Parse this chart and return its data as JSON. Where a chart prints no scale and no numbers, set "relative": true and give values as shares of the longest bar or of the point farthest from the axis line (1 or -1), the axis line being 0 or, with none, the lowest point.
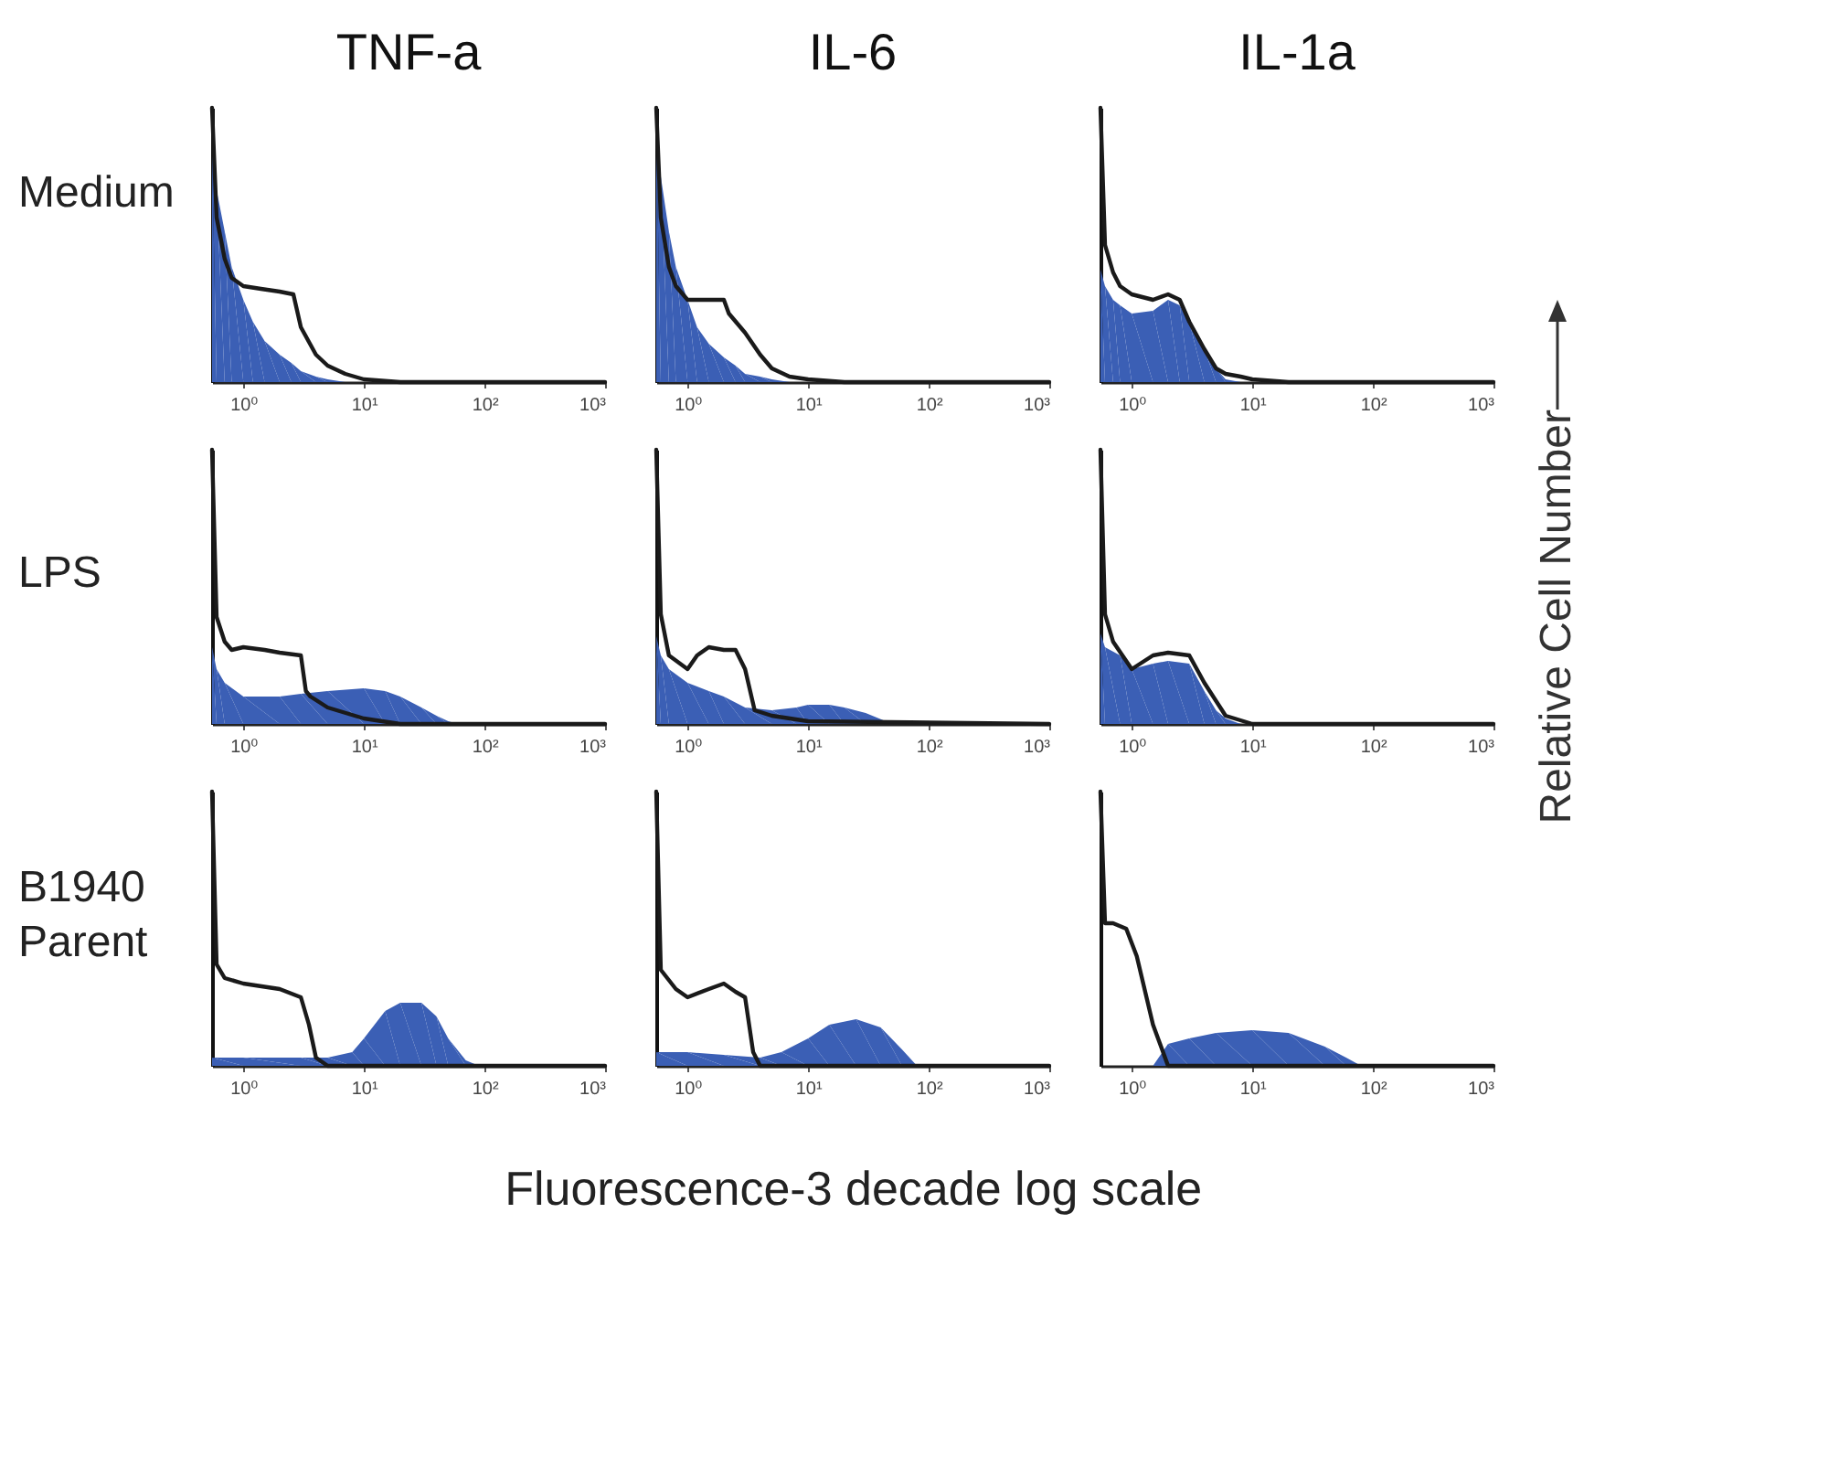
{
  "chart_data": [
    {
      "type": "area",
      "title": "TNF-a",
      "ylabel": "Medium",
      "relative": true,
      "log": "x",
      "xlim": [
        0.55,
        1000
      ],
      "xticks": [
        {
          "value": 1,
          "label": "10⁰"
        },
        {
          "value": 10,
          "label": "10¹"
        },
        {
          "value": 100,
          "label": "10²"
        },
        {
          "value": 1000,
          "label": "10³"
        }
      ],
      "series": [
        {
          "color": "#3b5fb5",
          "x": [
            0.55,
            0.6,
            0.7,
            0.8,
            1,
            1.2,
            1.5,
            2,
            2.5,
            3,
            4,
            5,
            7,
            10,
            1000
          ],
          "values": [
            0.85,
            0.7,
            0.55,
            0.42,
            0.3,
            0.22,
            0.15,
            0.1,
            0.07,
            0.04,
            0.02,
            0.01,
            0,
            0,
            0
          ]
        },
        {
          "type": "line",
          "color": "#1a1a1a",
          "x": [
            0.55,
            0.6,
            0.7,
            0.8,
            1,
            1.4,
            2,
            2.6,
            3,
            4,
            5,
            7,
            10,
            20,
            1000
          ],
          "values": [
            1,
            0.6,
            0.45,
            0.38,
            0.35,
            0.34,
            0.33,
            0.32,
            0.2,
            0.1,
            0.06,
            0.03,
            0.01,
            0,
            0
          ]
        }
      ]
    },
    {
      "type": "area",
      "title": "IL-6",
      "relative": true,
      "log": "x",
      "xlim": [
        0.55,
        1000
      ],
      "xticks": [
        {
          "value": 1,
          "label": "10⁰"
        },
        {
          "value": 10,
          "label": "10¹"
        },
        {
          "value": 100,
          "label": "10²"
        },
        {
          "value": 1000,
          "label": "10³"
        }
      ],
      "series": [
        {
          "color": "#3b5fb5",
          "x": [
            0.55,
            0.6,
            0.7,
            0.8,
            1,
            1.2,
            1.5,
            2,
            2.5,
            3,
            4,
            5,
            7,
            10,
            1000
          ],
          "values": [
            0.93,
            0.75,
            0.55,
            0.42,
            0.3,
            0.2,
            0.14,
            0.09,
            0.06,
            0.03,
            0.02,
            0.01,
            0,
            0,
            0
          ]
        },
        {
          "type": "line",
          "color": "#1a1a1a",
          "x": [
            0.55,
            0.6,
            0.7,
            0.8,
            1,
            1.4,
            2,
            2.2,
            3,
            4,
            5,
            7,
            10,
            20,
            1000
          ],
          "values": [
            1,
            0.6,
            0.42,
            0.35,
            0.3,
            0.3,
            0.3,
            0.25,
            0.18,
            0.1,
            0.05,
            0.02,
            0.01,
            0,
            0
          ]
        }
      ]
    },
    {
      "type": "area",
      "title": "IL-1a",
      "relative": true,
      "log": "x",
      "xlim": [
        0.55,
        1000
      ],
      "xticks": [
        {
          "value": 1,
          "label": "10⁰"
        },
        {
          "value": 10,
          "label": "10¹"
        },
        {
          "value": 100,
          "label": "10²"
        },
        {
          "value": 1000,
          "label": "10³"
        }
      ],
      "series": [
        {
          "color": "#3b5fb5",
          "x": [
            0.55,
            0.6,
            0.7,
            0.8,
            1,
            1.5,
            2,
            2.5,
            3,
            4,
            5,
            6,
            8,
            1000
          ],
          "values": [
            0.41,
            0.35,
            0.3,
            0.28,
            0.25,
            0.26,
            0.3,
            0.28,
            0.22,
            0.12,
            0.05,
            0.01,
            0,
            0
          ]
        },
        {
          "type": "line",
          "color": "#1a1a1a",
          "x": [
            0.55,
            0.6,
            0.7,
            0.8,
            1,
            1.5,
            2,
            2.5,
            3,
            4,
            5,
            6,
            8,
            10,
            20,
            1000
          ],
          "values": [
            1,
            0.5,
            0.4,
            0.35,
            0.32,
            0.3,
            0.32,
            0.3,
            0.22,
            0.12,
            0.05,
            0.03,
            0.02,
            0.01,
            0,
            0
          ]
        }
      ]
    },
    {
      "type": "area",
      "ylabel": "LPS",
      "relative": true,
      "log": "x",
      "xlim": [
        0.55,
        1000
      ],
      "xticks": [
        {
          "value": 1,
          "label": "10⁰"
        },
        {
          "value": 10,
          "label": "10¹"
        },
        {
          "value": 100,
          "label": "10²"
        },
        {
          "value": 1000,
          "label": "10³"
        }
      ],
      "series": [
        {
          "color": "#3b5fb5",
          "x": [
            0.55,
            0.6,
            0.7,
            1,
            2,
            3,
            5,
            10,
            15,
            20,
            30,
            40,
            50,
            60,
            1000
          ],
          "values": [
            0.28,
            0.2,
            0.15,
            0.1,
            0.1,
            0.11,
            0.12,
            0.13,
            0.12,
            0.1,
            0.06,
            0.03,
            0.01,
            0,
            0
          ]
        },
        {
          "type": "line",
          "color": "#1a1a1a",
          "x": [
            0.55,
            0.6,
            0.7,
            0.8,
            1,
            1.5,
            2,
            3,
            3.3,
            3.6,
            5,
            10,
            20,
            1000
          ],
          "values": [
            1,
            0.39,
            0.3,
            0.27,
            0.28,
            0.27,
            0.26,
            0.25,
            0.12,
            0.1,
            0.06,
            0.02,
            0,
            0
          ]
        }
      ]
    },
    {
      "type": "area",
      "relative": true,
      "log": "x",
      "xlim": [
        0.55,
        1000
      ],
      "xticks": [
        {
          "value": 1,
          "label": "10⁰"
        },
        {
          "value": 10,
          "label": "10¹"
        },
        {
          "value": 100,
          "label": "10²"
        },
        {
          "value": 1000,
          "label": "10³"
        }
      ],
      "series": [
        {
          "color": "#3b5fb5",
          "x": [
            0.55,
            0.6,
            0.7,
            1,
            1.5,
            2,
            3,
            5,
            8,
            10,
            15,
            20,
            30,
            50,
            1000
          ],
          "values": [
            0.32,
            0.25,
            0.2,
            0.15,
            0.12,
            0.1,
            0.06,
            0.05,
            0.06,
            0.07,
            0.07,
            0.06,
            0.04,
            0,
            0
          ]
        },
        {
          "type": "line",
          "color": "#1a1a1a",
          "x": [
            0.55,
            0.6,
            0.7,
            1,
            1.2,
            1.5,
            2,
            2.5,
            3,
            3.6,
            5,
            10,
            1000
          ],
          "values": [
            1,
            0.4,
            0.25,
            0.2,
            0.25,
            0.28,
            0.27,
            0.27,
            0.2,
            0.05,
            0.03,
            0.01,
            0
          ]
        }
      ]
    },
    {
      "type": "area",
      "y2label": "Relative Cell Number",
      "relative": true,
      "log": "x",
      "xlim": [
        0.55,
        1000
      ],
      "xticks": [
        {
          "value": 1,
          "label": "10⁰"
        },
        {
          "value": 10,
          "label": "10¹"
        },
        {
          "value": 100,
          "label": "10²"
        },
        {
          "value": 1000,
          "label": "10³"
        }
      ],
      "series": [
        {
          "color": "#3b5fb5",
          "x": [
            0.55,
            0.6,
            0.8,
            1,
            1.5,
            2,
            3,
            4,
            5,
            6,
            8,
            1000
          ],
          "values": [
            0.33,
            0.28,
            0.25,
            0.2,
            0.22,
            0.23,
            0.22,
            0.12,
            0.05,
            0.02,
            0,
            0
          ]
        },
        {
          "type": "line",
          "color": "#1a1a1a",
          "x": [
            0.55,
            0.6,
            0.7,
            1,
            1.5,
            2,
            3,
            4,
            6,
            10,
            1000
          ],
          "values": [
            1,
            0.4,
            0.3,
            0.2,
            0.25,
            0.26,
            0.25,
            0.15,
            0.03,
            0,
            0
          ]
        }
      ]
    },
    {
      "type": "area",
      "ylabel": "B1940 Parent",
      "relative": true,
      "log": "x",
      "xlim": [
        0.55,
        1000
      ],
      "xticks": [
        {
          "value": 1,
          "label": "10⁰"
        },
        {
          "value": 10,
          "label": "10¹"
        },
        {
          "value": 100,
          "label": "10²"
        },
        {
          "value": 1000,
          "label": "10³"
        }
      ],
      "series": [
        {
          "color": "#3b5fb5",
          "x": [
            0.55,
            1,
            3,
            5,
            8,
            10,
            15,
            20,
            30,
            40,
            50,
            70,
            90,
            1000
          ],
          "values": [
            0.03,
            0.03,
            0.03,
            0.03,
            0.05,
            0.1,
            0.2,
            0.23,
            0.23,
            0.18,
            0.1,
            0.02,
            0,
            0
          ]
        },
        {
          "type": "line",
          "color": "#1a1a1a",
          "x": [
            0.55,
            0.6,
            0.7,
            1,
            2,
            3,
            3.5,
            4,
            5,
            1000
          ],
          "values": [
            1,
            0.37,
            0.32,
            0.3,
            0.28,
            0.25,
            0.15,
            0.03,
            0,
            0
          ]
        }
      ]
    },
    {
      "type": "area",
      "xlabel": "Fluorescence-3 decade log scale",
      "relative": true,
      "log": "x",
      "xlim": [
        0.55,
        1000
      ],
      "xticks": [
        {
          "value": 1,
          "label": "10⁰"
        },
        {
          "value": 10,
          "label": "10¹"
        },
        {
          "value": 100,
          "label": "10²"
        },
        {
          "value": 1000,
          "label": "10³"
        }
      ],
      "series": [
        {
          "color": "#3b5fb5",
          "x": [
            0.55,
            1,
            2,
            4,
            6,
            10,
            15,
            25,
            40,
            60,
            80,
            1000
          ],
          "values": [
            0.05,
            0.05,
            0.04,
            0.03,
            0.05,
            0.1,
            0.15,
            0.17,
            0.14,
            0.06,
            0,
            0
          ]
        },
        {
          "type": "line",
          "color": "#1a1a1a",
          "x": [
            0.55,
            0.6,
            0.8,
            1,
            1.5,
            2,
            2.5,
            3,
            3.5,
            4,
            1000
          ],
          "values": [
            1,
            0.35,
            0.28,
            0.25,
            0.28,
            0.3,
            0.27,
            0.25,
            0.05,
            0,
            0
          ]
        }
      ]
    },
    {
      "type": "area",
      "relative": true,
      "log": "x",
      "xlim": [
        0.55,
        1000
      ],
      "xticks": [
        {
          "value": 1,
          "label": "10⁰"
        },
        {
          "value": 10,
          "label": "10¹"
        },
        {
          "value": 100,
          "label": "10²"
        },
        {
          "value": 1000,
          "label": "10³"
        }
      ],
      "series": [
        {
          "color": "#3b5fb5",
          "x": [
            0.55,
            1.5,
            2,
            3,
            5,
            10,
            20,
            40,
            60,
            80,
            1000
          ],
          "values": [
            0,
            0,
            0.08,
            0.1,
            0.12,
            0.13,
            0.12,
            0.07,
            0.03,
            0,
            0
          ]
        },
        {
          "type": "line",
          "color": "#1a1a1a",
          "x": [
            0.55,
            0.6,
            0.7,
            0.9,
            1.1,
            1.5,
            2,
            1000
          ],
          "values": [
            1,
            0.52,
            0.52,
            0.5,
            0.4,
            0.15,
            0,
            0
          ]
        }
      ]
    }
  ]
}
